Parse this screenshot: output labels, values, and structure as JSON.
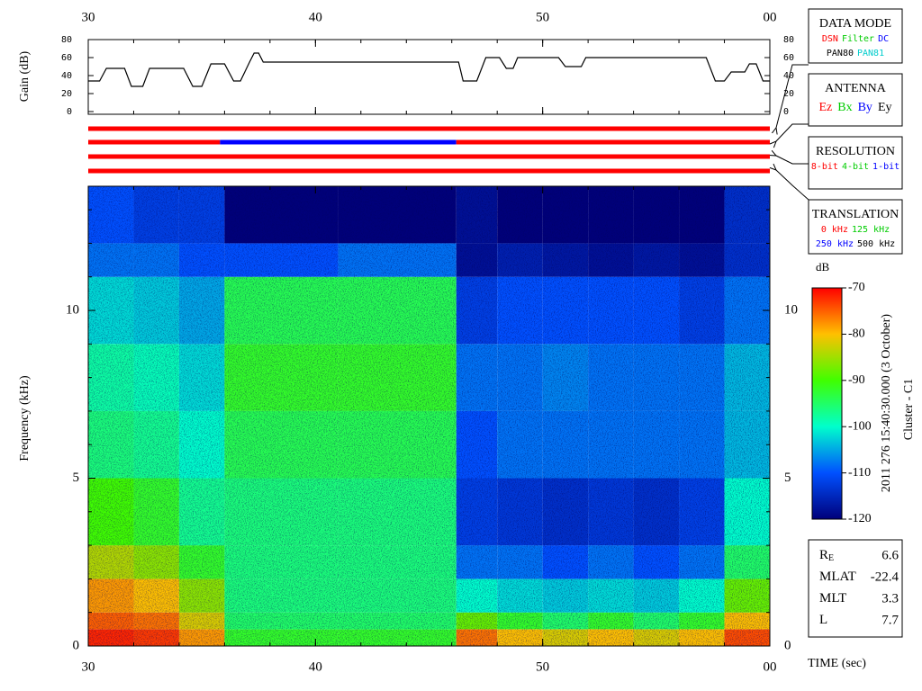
{
  "chart_data": [
    {
      "type": "line",
      "ylabel": "Gain (dB)",
      "xlim": [
        30,
        60
      ],
      "xticks": [
        30,
        40,
        50,
        {
          "value": 60,
          "label": "00"
        }
      ],
      "x_minor_step": 2,
      "ylim": [
        0,
        80
      ],
      "yticks": [
        0,
        20,
        40,
        60,
        80
      ],
      "series": [
        {
          "color": "#000000",
          "x": [
            30,
            30.5,
            30.8,
            31.6,
            31.9,
            32.4,
            32.7,
            34.2,
            34.6,
            35.0,
            35.4,
            36.0,
            36.4,
            36.7,
            37.1,
            37.3,
            37.5,
            37.7,
            46.3,
            46.5,
            47.1,
            47.5,
            48.1,
            48.4,
            48.7,
            48.9,
            50.7,
            51.0,
            51.7,
            51.9,
            57.2,
            57.6,
            58.0,
            58.3,
            58.9,
            59.1,
            59.4,
            59.7,
            60
          ],
          "values": [
            34,
            34,
            48,
            48,
            28,
            28,
            48,
            48,
            28,
            28,
            53,
            53,
            34,
            34,
            55,
            65,
            65,
            55,
            55,
            34,
            34,
            60,
            60,
            48,
            48,
            60,
            60,
            50,
            50,
            60,
            60,
            34,
            34,
            44,
            44,
            53,
            53,
            34,
            34
          ]
        }
      ]
    },
    {
      "type": "status",
      "xlim": [
        30,
        60
      ],
      "rows": [
        {
          "segments": [
            {
              "start": 30,
              "end": 60,
              "color": "#ff0000"
            }
          ]
        },
        {
          "segments": [
            {
              "start": 30,
              "end": 35.8,
              "color": "#ff0000"
            },
            {
              "start": 35.8,
              "end": 46.2,
              "color": "#0000ff"
            },
            {
              "start": 46.2,
              "end": 60,
              "color": "#ff0000"
            }
          ]
        },
        {
          "segments": [
            {
              "start": 30,
              "end": 60,
              "color": "#ff0000"
            }
          ]
        },
        {
          "segments": [
            {
              "start": 30,
              "end": 60,
              "color": "#ff0000"
            }
          ]
        }
      ]
    },
    {
      "type": "heatmap",
      "ylabel": "Frequency (kHz)",
      "xlabel": "TIME (sec)",
      "xlim": [
        30,
        60
      ],
      "xticks": [
        30,
        40,
        50,
        {
          "value": 60,
          "label": "00"
        }
      ],
      "ylim": [
        0,
        13.7
      ],
      "yticks": [
        0,
        5,
        10
      ],
      "y_minor_step": 1,
      "x_edges": [
        30,
        32,
        34,
        36,
        41,
        46.2,
        48,
        50,
        52,
        54,
        56,
        58,
        60
      ],
      "y_edges": [
        0,
        0.5,
        1,
        2,
        3,
        5,
        7,
        9,
        11,
        12,
        13.7
      ],
      "z": [
        [
          -72,
          -73,
          -78,
          -92,
          -92,
          -76,
          -80,
          -82,
          -80,
          -82,
          -80,
          -74
        ],
        [
          -75,
          -76,
          -82,
          -95,
          -95,
          -88,
          -92,
          -95,
          -92,
          -95,
          -92,
          -80
        ],
        [
          -78,
          -80,
          -86,
          -96,
          -96,
          -100,
          -102,
          -103,
          -102,
          -103,
          -100,
          -88
        ],
        [
          -84,
          -86,
          -92,
          -96,
          -96,
          -108,
          -108,
          -110,
          -108,
          -110,
          -108,
          -95
        ],
        [
          -90,
          -92,
          -97,
          -96,
          -96,
          -112,
          -113,
          -114,
          -113,
          -114,
          -112,
          -100
        ],
        [
          -96,
          -97,
          -100,
          -94,
          -94,
          -110,
          -108,
          -108,
          -108,
          -108,
          -108,
          -104
        ],
        [
          -98,
          -99,
          -102,
          -92,
          -92,
          -108,
          -108,
          -107,
          -108,
          -108,
          -108,
          -104
        ],
        [
          -102,
          -103,
          -105,
          -94,
          -94,
          -112,
          -110,
          -110,
          -110,
          -110,
          -112,
          -108
        ],
        [
          -108,
          -108,
          -110,
          -110,
          -108,
          -118,
          -116,
          -117,
          -118,
          -117,
          -118,
          -114
        ],
        [
          -110,
          -112,
          -112,
          -120,
          -120,
          -118,
          -120,
          -120,
          -120,
          -120,
          -120,
          -114
        ]
      ],
      "colorbar": {
        "label": "dB",
        "zlim": [
          -120,
          -70
        ],
        "ticks": [
          -70,
          -80,
          -90,
          -100,
          -110,
          -120
        ],
        "colors": [
          "#00007a",
          "#0050ff",
          "#00ffcc",
          "#40ff00",
          "#ffc000",
          "#ff0000"
        ]
      }
    }
  ],
  "legend_boxes": [
    {
      "title": "DATA MODE",
      "rows": [
        [
          {
            "text": "DSN",
            "color": "#ff0000"
          },
          {
            "text": "Filter",
            "color": "#00cc00"
          },
          {
            "text": "DC",
            "color": "#0000ff"
          }
        ],
        [
          {
            "text": "PAN80",
            "color": "#000000"
          },
          {
            "text": "PAN81",
            "color": "#00cccc"
          }
        ]
      ]
    },
    {
      "title": "ANTENNA",
      "rows": [
        [
          {
            "text": "Ez",
            "color": "#ff0000"
          },
          {
            "text": "Bx",
            "color": "#00cc00"
          },
          {
            "text": "By",
            "color": "#0000ff"
          },
          {
            "text": "Ey",
            "color": "#000000"
          }
        ]
      ]
    },
    {
      "title": "RESOLUTION",
      "rows": [
        [
          {
            "text": "8-bit",
            "color": "#ff0000"
          },
          {
            "text": "4-bit",
            "color": "#00cc00"
          },
          {
            "text": "1-bit",
            "color": "#0000ff"
          }
        ]
      ]
    },
    {
      "title": "TRANSLATION",
      "rows": [
        [
          {
            "text": "0 kHz",
            "color": "#ff0000"
          },
          {
            "text": "125 kHz",
            "color": "#00cc00"
          }
        ],
        [
          {
            "text": "250 kHz",
            "color": "#0000ff"
          },
          {
            "text": "500 kHz",
            "color": "#000000"
          }
        ]
      ]
    }
  ],
  "annotations": {
    "timestamp": "2011 276 15:40:30.000 (3 October)",
    "spacecraft": "Cluster - C1"
  },
  "info": [
    {
      "label": "R",
      "sub": "E",
      "value": 6.6
    },
    {
      "label": "MLAT",
      "value": -22.4
    },
    {
      "label": "MLT",
      "value": 3.3
    },
    {
      "label": "L",
      "value": 7.7
    }
  ]
}
